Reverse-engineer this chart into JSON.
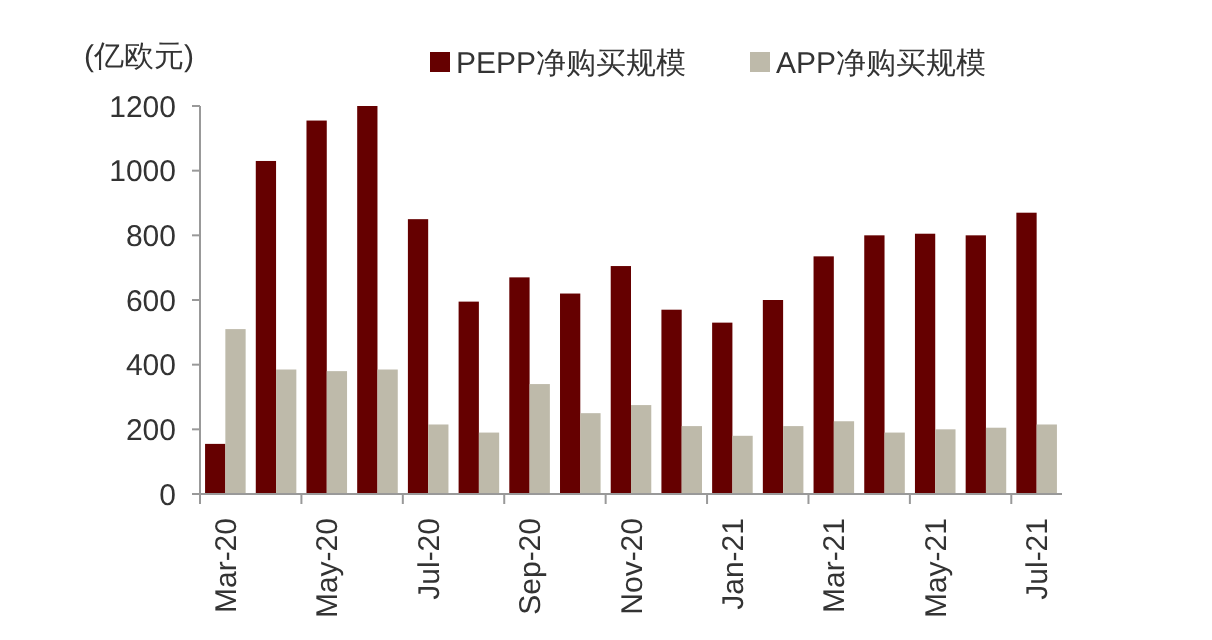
{
  "chart_data": {
    "type": "bar",
    "ylabel": "(亿欧元)",
    "categories": [
      "Mar-20",
      null,
      "May-20",
      null,
      "Jul-20",
      null,
      "Sep-20",
      null,
      "Nov-20",
      null,
      "Jan-21",
      null,
      "Mar-21",
      null,
      "May-21",
      null,
      "Jul-21"
    ],
    "series": [
      {
        "name": "PEPP净购买规模",
        "color": "#650000",
        "values": [
          155,
          1030,
          1155,
          1200,
          850,
          595,
          670,
          620,
          705,
          570,
          530,
          600,
          735,
          800,
          805,
          800,
          870
        ]
      },
      {
        "name": "APP净购买规模",
        "color": "#bebaaa",
        "values": [
          510,
          385,
          380,
          385,
          215,
          190,
          340,
          250,
          275,
          210,
          180,
          210,
          225,
          190,
          200,
          205,
          215
        ]
      }
    ],
    "ylim": [
      0,
      1200
    ],
    "yticks": [
      0,
      200,
      400,
      600,
      800,
      1000,
      1200
    ],
    "grid": false,
    "legend": "top"
  }
}
